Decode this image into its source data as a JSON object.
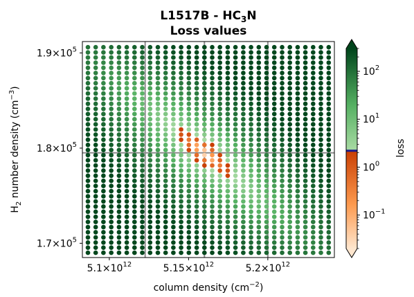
{
  "chart_data": {
    "type": "scatter",
    "title": {
      "line1_main": "L1517B - HC",
      "line1_sub": "3",
      "line1_end": "N",
      "line2": "Loss values"
    },
    "xlabel": {
      "main": "column density (cm",
      "sup": "−2",
      "end": ")"
    },
    "ylabel": {
      "pre": "H",
      "sub": "2",
      "mid": " number density (cm",
      "sup": "−3",
      "end": ")"
    },
    "colorbar": {
      "label": "loss",
      "scale": "log",
      "range": [
        0.02,
        300
      ],
      "threshold": 2.2,
      "ticks": [
        {
          "value": 0.1,
          "base": "10",
          "exp": "−1"
        },
        {
          "value": 1,
          "base": "10",
          "exp": "0"
        },
        {
          "value": 10,
          "base": "10",
          "exp": "1"
        },
        {
          "value": 100,
          "base": "10",
          "exp": "2"
        }
      ]
    },
    "xlim": [
      5083000000000.0,
      5242000000000.0
    ],
    "ylim": [
      168500,
      191200
    ],
    "x_ticks": [
      {
        "value": 5100000000000.0,
        "mant": "5.1×10",
        "exp": "12"
      },
      {
        "value": 5150000000000.0,
        "mant": "5.15×10",
        "exp": "12"
      },
      {
        "value": 5200000000000.0,
        "mant": "5.2×10",
        "exp": "12"
      }
    ],
    "y_ticks": [
      {
        "value": 170000,
        "mant": "1.7×10",
        "exp": "5"
      },
      {
        "value": 180000,
        "mant": "1.8×10",
        "exp": "5"
      },
      {
        "value": 190000,
        "mant": "1.9×10",
        "exp": "5"
      }
    ],
    "best_fit": {
      "x": 5160000000000.0,
      "y": 179500
    },
    "grid": {
      "x_start": 5086500000000.0,
      "x_step": 4900000000.0,
      "nx": 32,
      "y_start": 169000,
      "y_step": 540,
      "ny": 41
    },
    "grid_lines": {
      "x": [
        5122600000000.0,
        5160000000000.0,
        5200000000000.0
      ],
      "y": [
        179500
      ]
    }
  },
  "colors": {
    "green_light": "#9fd49b",
    "green_mid": "#48a95c",
    "green_dark": "#0a5a2c",
    "orange_light": "#fde0c5",
    "orange_mid": "#f5883a",
    "orange_dark": "#cf4b05",
    "threshold": "#1a1a8c",
    "gridline": "#8c8c8c"
  }
}
